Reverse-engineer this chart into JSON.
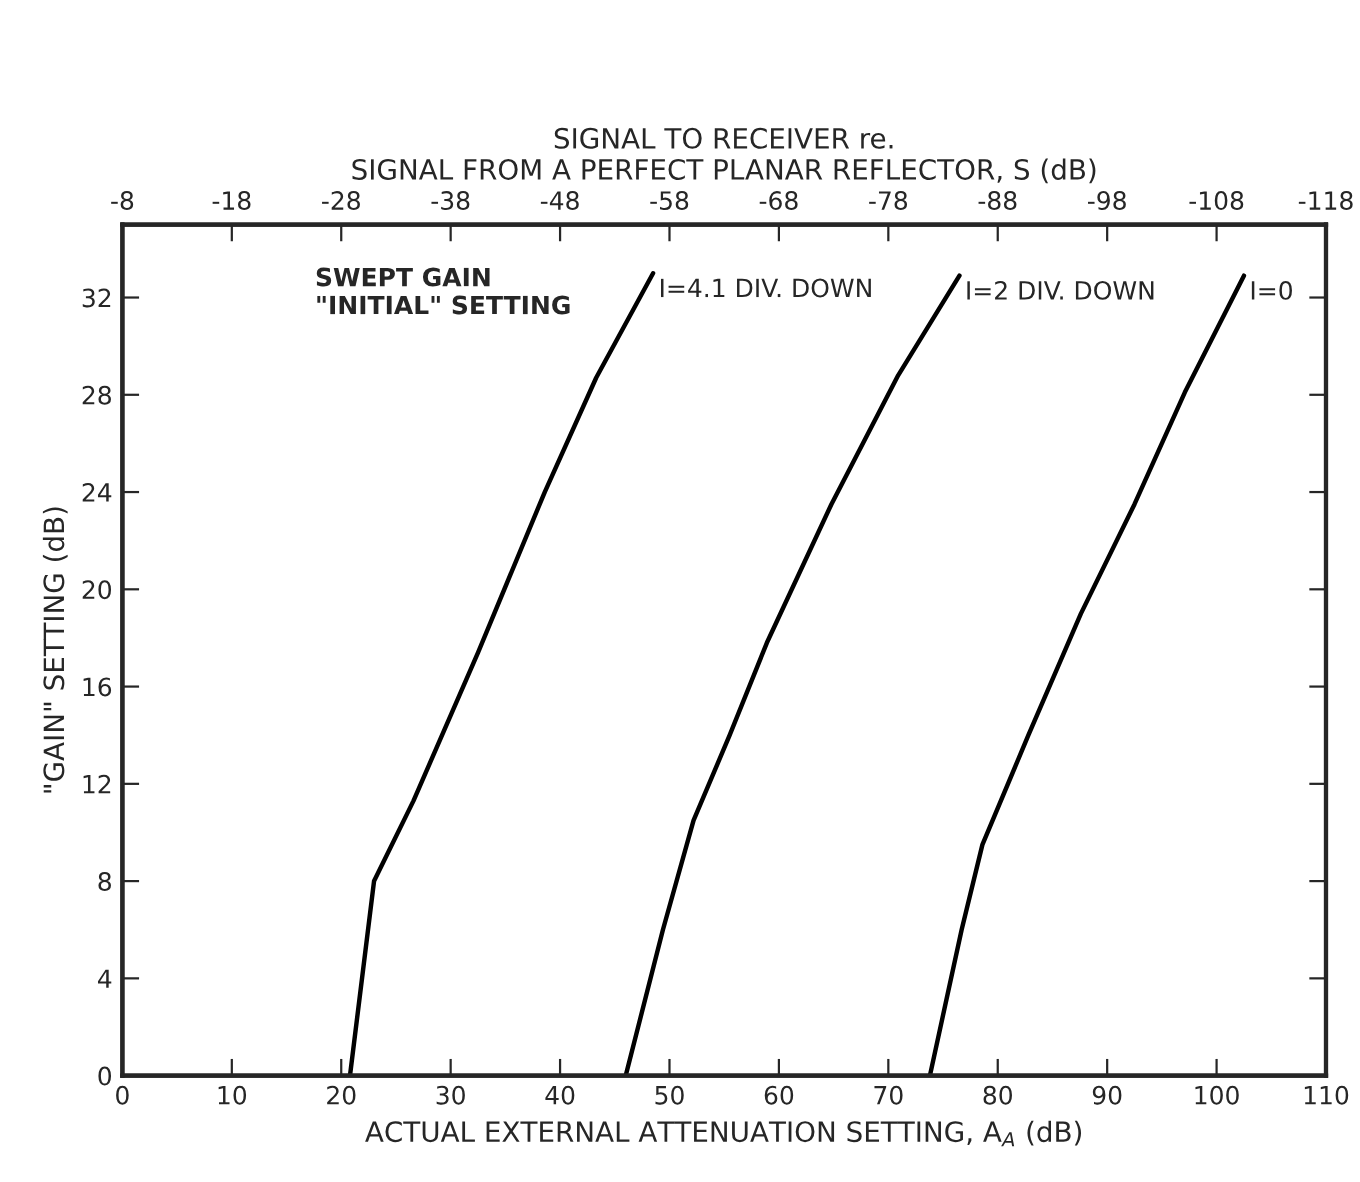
{
  "chart_data": {
    "type": "line",
    "xlabel": "ACTUAL EXTERNAL ATTENUATION SETTING, A$_{A}$ (dB)",
    "ylabel": "\"GAIN\" SETTING (dB)",
    "x2label": "SIGNAL TO RECEIVER re.\nSIGNAL FROM A PERFECT PLANAR REFLECTOR, S (dB)",
    "annotations": [
      "SWEPT GAIN\n\"INITIAL\" SETTING"
    ],
    "series": [
      {
        "name": "I=4.1 DIV. DOWN",
        "color": "#000000",
        "x": [
          20.8,
          23.0,
          26.6,
          32.5,
          38.6,
          43.3,
          48.5
        ],
        "values": [
          0,
          8.0,
          11.3,
          17.4,
          24.0,
          28.7,
          33.0
        ]
      },
      {
        "name": "I=2 DIV. DOWN",
        "color": "#000000",
        "x": [
          46.0,
          49.4,
          52.2,
          55.5,
          58.9,
          64.8,
          70.9,
          76.5
        ],
        "values": [
          0,
          6.0,
          10.5,
          14.0,
          17.8,
          23.5,
          28.8,
          32.9
        ]
      },
      {
        "name": "I=0",
        "color": "#000000",
        "x": [
          73.8,
          76.7,
          78.6,
          82.8,
          87.6,
          92.5,
          97.1,
          102.5
        ],
        "values": [
          0,
          6.0,
          9.5,
          14.0,
          19.0,
          23.5,
          28.1,
          32.9
        ]
      }
    ],
    "xlim": [
      0,
      110
    ],
    "xticks": [
      0,
      10,
      20,
      30,
      40,
      50,
      60,
      70,
      80,
      90,
      100,
      110
    ],
    "ylim": [
      0,
      35
    ],
    "yticks": [
      0,
      4,
      8,
      12,
      16,
      20,
      24,
      28,
      32
    ],
    "x2lim": [
      -8,
      -118
    ],
    "x2ticks": [
      -8,
      -18,
      -28,
      -38,
      -48,
      -58,
      -68,
      -78,
      -88,
      -98,
      -108,
      -118
    ],
    "grid": false,
    "legend": false,
    "marker": "none",
    "line_style": "solid"
  }
}
